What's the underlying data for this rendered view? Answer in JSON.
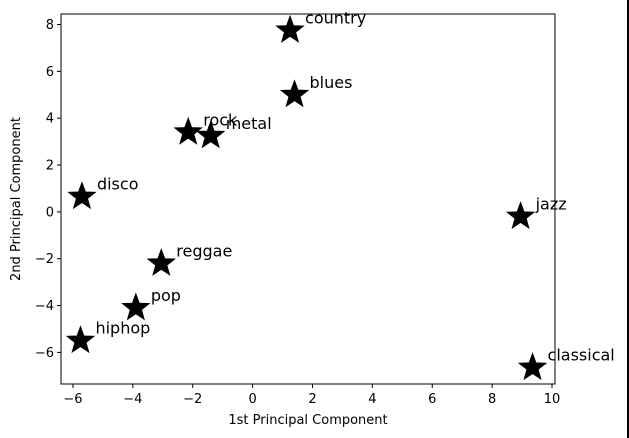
{
  "chart_data": {
    "type": "scatter",
    "title": "",
    "xlabel": "1st Principal Component",
    "ylabel": "2nd Principal Component",
    "xlim": [
      -6.4,
      10.1
    ],
    "ylim": [
      -7.35,
      8.45
    ],
    "xticks": [
      -6,
      -4,
      -2,
      0,
      2,
      4,
      6,
      8,
      10
    ],
    "yticks": [
      -6,
      -4,
      -2,
      0,
      2,
      4,
      6,
      8
    ],
    "grid": false,
    "marker": "star",
    "marker_color": "#000000",
    "points": [
      {
        "label": "country",
        "x": 1.25,
        "y": 7.75
      },
      {
        "label": "blues",
        "x": 1.4,
        "y": 5.0
      },
      {
        "label": "rock",
        "x": -2.15,
        "y": 3.4
      },
      {
        "label": "metal",
        "x": -1.4,
        "y": 3.25
      },
      {
        "label": "disco",
        "x": -5.7,
        "y": 0.65
      },
      {
        "label": "jazz",
        "x": 8.95,
        "y": -0.2
      },
      {
        "label": "reggae",
        "x": -3.05,
        "y": -2.2
      },
      {
        "label": "pop",
        "x": -3.9,
        "y": -4.1
      },
      {
        "label": "hiphop",
        "x": -5.75,
        "y": -5.5
      },
      {
        "label": "classical",
        "x": 9.35,
        "y": -6.65
      }
    ]
  }
}
